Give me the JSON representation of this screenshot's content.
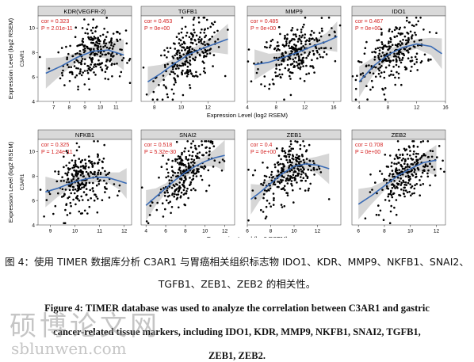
{
  "figure": {
    "y_axis_label": "Expression Level (log2 RSEM)",
    "x_axis_label": "Expression Level (log2 RSEM)",
    "point_color": "#000000",
    "line_color": "#3a6bb5",
    "band_color": "#c8c8c8",
    "stat_color": "#d42020"
  },
  "caption": {
    "cn_line1": "图 4：使用 TIMER 数据库分析 C3AR1 与胃癌相关组织标志物 IDO1、KDR、MMP9、NKFB1、SNAI2、",
    "cn_line2": "TGFB1、ZEB1、ZEB2 的相关性。",
    "en_line1": "Figure 4: TIMER database was used to analyze the correlation between C3AR1 and gastric",
    "en_line2": "cancer-related tissue markers, including IDO1, KDR, MMP9, NKFB1, SNAI2, TGFB1,",
    "en_line3": "ZEB1, ZEB2."
  },
  "watermark": {
    "text": "硕博论文网",
    "url": "sblunwen.com"
  },
  "chart_data": [
    {
      "type": "scatter",
      "title": "KDR(VEGFR-2)",
      "ylabel": "C3AR1",
      "cor": "cor = 0.323",
      "p": "P = 2.01e-11",
      "xlim": [
        6,
        12
      ],
      "ylim": [
        4,
        11
      ],
      "xticks": [
        7,
        8,
        9,
        10,
        11
      ],
      "yticks": [
        4,
        6,
        8,
        10
      ],
      "x_center": 9.6,
      "x_sd": 1.0,
      "slope": 0.37,
      "trend": [
        [
          6.5,
          6.3
        ],
        [
          7.5,
          6.9
        ],
        [
          8.5,
          7.6
        ],
        [
          9.5,
          8.1
        ],
        [
          10.5,
          8.2
        ],
        [
          11.5,
          7.8
        ]
      ]
    },
    {
      "type": "scatter",
      "title": "TGFB1",
      "ylabel": "",
      "cor": "cor = 0.453",
      "p": "P = 0e+00",
      "xlim": [
        7,
        14
      ],
      "ylim": [
        4,
        11
      ],
      "xticks": [
        8,
        10,
        12
      ],
      "yticks": [],
      "x_center": 10.6,
      "x_sd": 1.2,
      "slope": 0.45,
      "trend": [
        [
          7.5,
          5.6
        ],
        [
          8.5,
          6.3
        ],
        [
          9.5,
          7.1
        ],
        [
          10.5,
          7.8
        ],
        [
          11.5,
          8.3
        ],
        [
          12.5,
          8.7
        ],
        [
          13.5,
          9.1
        ]
      ]
    },
    {
      "type": "scatter",
      "title": "MMP9",
      "ylabel": "",
      "cor": "cor = 0.485",
      "p": "P = 0e+00",
      "xlim": [
        4,
        17
      ],
      "ylim": [
        4,
        11
      ],
      "xticks": [
        4,
        8,
        12,
        16
      ],
      "yticks": [],
      "x_center": 10.5,
      "x_sd": 2.4,
      "slope": 0.22,
      "trend": [
        [
          5,
          7.0
        ],
        [
          7,
          7.2
        ],
        [
          9,
          7.6
        ],
        [
          11,
          8.0
        ],
        [
          13,
          8.5
        ],
        [
          15,
          8.9
        ],
        [
          16.5,
          9.3
        ]
      ]
    },
    {
      "type": "scatter",
      "title": "IDO1",
      "ylabel": "",
      "cor": "cor = 0.467",
      "p": "P = 0e+00",
      "xlim": [
        3,
        16
      ],
      "ylim": [
        4,
        11
      ],
      "xticks": [
        4,
        8,
        12,
        16
      ],
      "yticks": [],
      "x_center": 8.7,
      "x_sd": 2.3,
      "slope": 0.25,
      "trend": [
        [
          4,
          5.6
        ],
        [
          6,
          6.9
        ],
        [
          8,
          7.8
        ],
        [
          10,
          8.4
        ],
        [
          12,
          8.7
        ],
        [
          14,
          8.5
        ],
        [
          15.5,
          7.9
        ]
      ]
    },
    {
      "type": "scatter",
      "title": "NFKB1",
      "ylabel": "C3AR1",
      "cor": "cor = 0.325",
      "p": "P = 1.24e-11",
      "xlim": [
        8.5,
        12.3
      ],
      "ylim": [
        4,
        11
      ],
      "xticks": [
        9,
        10,
        11,
        12
      ],
      "yticks": [
        4,
        6,
        8,
        10
      ],
      "x_center": 10.3,
      "x_sd": 0.55,
      "slope": 0.7,
      "trend": [
        [
          8.8,
          6.7
        ],
        [
          9.3,
          7.0
        ],
        [
          9.8,
          7.4
        ],
        [
          10.3,
          7.7
        ],
        [
          10.8,
          7.9
        ],
        [
          11.3,
          7.9
        ],
        [
          11.8,
          7.6
        ],
        [
          12.1,
          7.4
        ]
      ]
    },
    {
      "type": "scatter",
      "title": "SNAI2",
      "ylabel": "",
      "cor": "cor = 0.518",
      "p": "P = 5.32e-30",
      "xlim": [
        3.5,
        13
      ],
      "ylim": [
        4,
        11
      ],
      "xticks": [
        4,
        6,
        8,
        10,
        12
      ],
      "yticks": [],
      "x_center": 7.8,
      "x_sd": 1.4,
      "slope": 0.45,
      "trend": [
        [
          4,
          5.6
        ],
        [
          5,
          6.3
        ],
        [
          6,
          7.0
        ],
        [
          7,
          7.7
        ],
        [
          8,
          8.3
        ],
        [
          9,
          8.8
        ],
        [
          10,
          9.2
        ],
        [
          11,
          9.5
        ],
        [
          12,
          9.7
        ]
      ]
    },
    {
      "type": "scatter",
      "title": "ZEB1",
      "ylabel": "",
      "cor": "cor = 0.4",
      "p": "P = 0e+00",
      "xlim": [
        6,
        14
      ],
      "ylim": [
        4,
        11
      ],
      "xticks": [
        6,
        8,
        10,
        12
      ],
      "yticks": [],
      "x_center": 9.6,
      "x_sd": 1.2,
      "slope": 0.4,
      "trend": [
        [
          6.3,
          6.1
        ],
        [
          7,
          6.6
        ],
        [
          8,
          7.4
        ],
        [
          9,
          8.2
        ],
        [
          10,
          8.8
        ],
        [
          11,
          9.0
        ],
        [
          12,
          8.9
        ],
        [
          13,
          8.6
        ]
      ]
    },
    {
      "type": "scatter",
      "title": "ZEB2",
      "ylabel": "",
      "cor": "cor = 0.708",
      "p": "P = 0e+00",
      "xlim": [
        5.5,
        12.7
      ],
      "ylim": [
        4,
        11
      ],
      "xticks": [
        6,
        8,
        10,
        12
      ],
      "yticks": [],
      "x_center": 9.6,
      "x_sd": 1.1,
      "slope": 0.9,
      "trend": [
        [
          6,
          5.7
        ],
        [
          7,
          6.4
        ],
        [
          8,
          7.2
        ],
        [
          9,
          8.0
        ],
        [
          10,
          8.6
        ],
        [
          11,
          9.1
        ],
        [
          12,
          9.3
        ]
      ]
    }
  ]
}
